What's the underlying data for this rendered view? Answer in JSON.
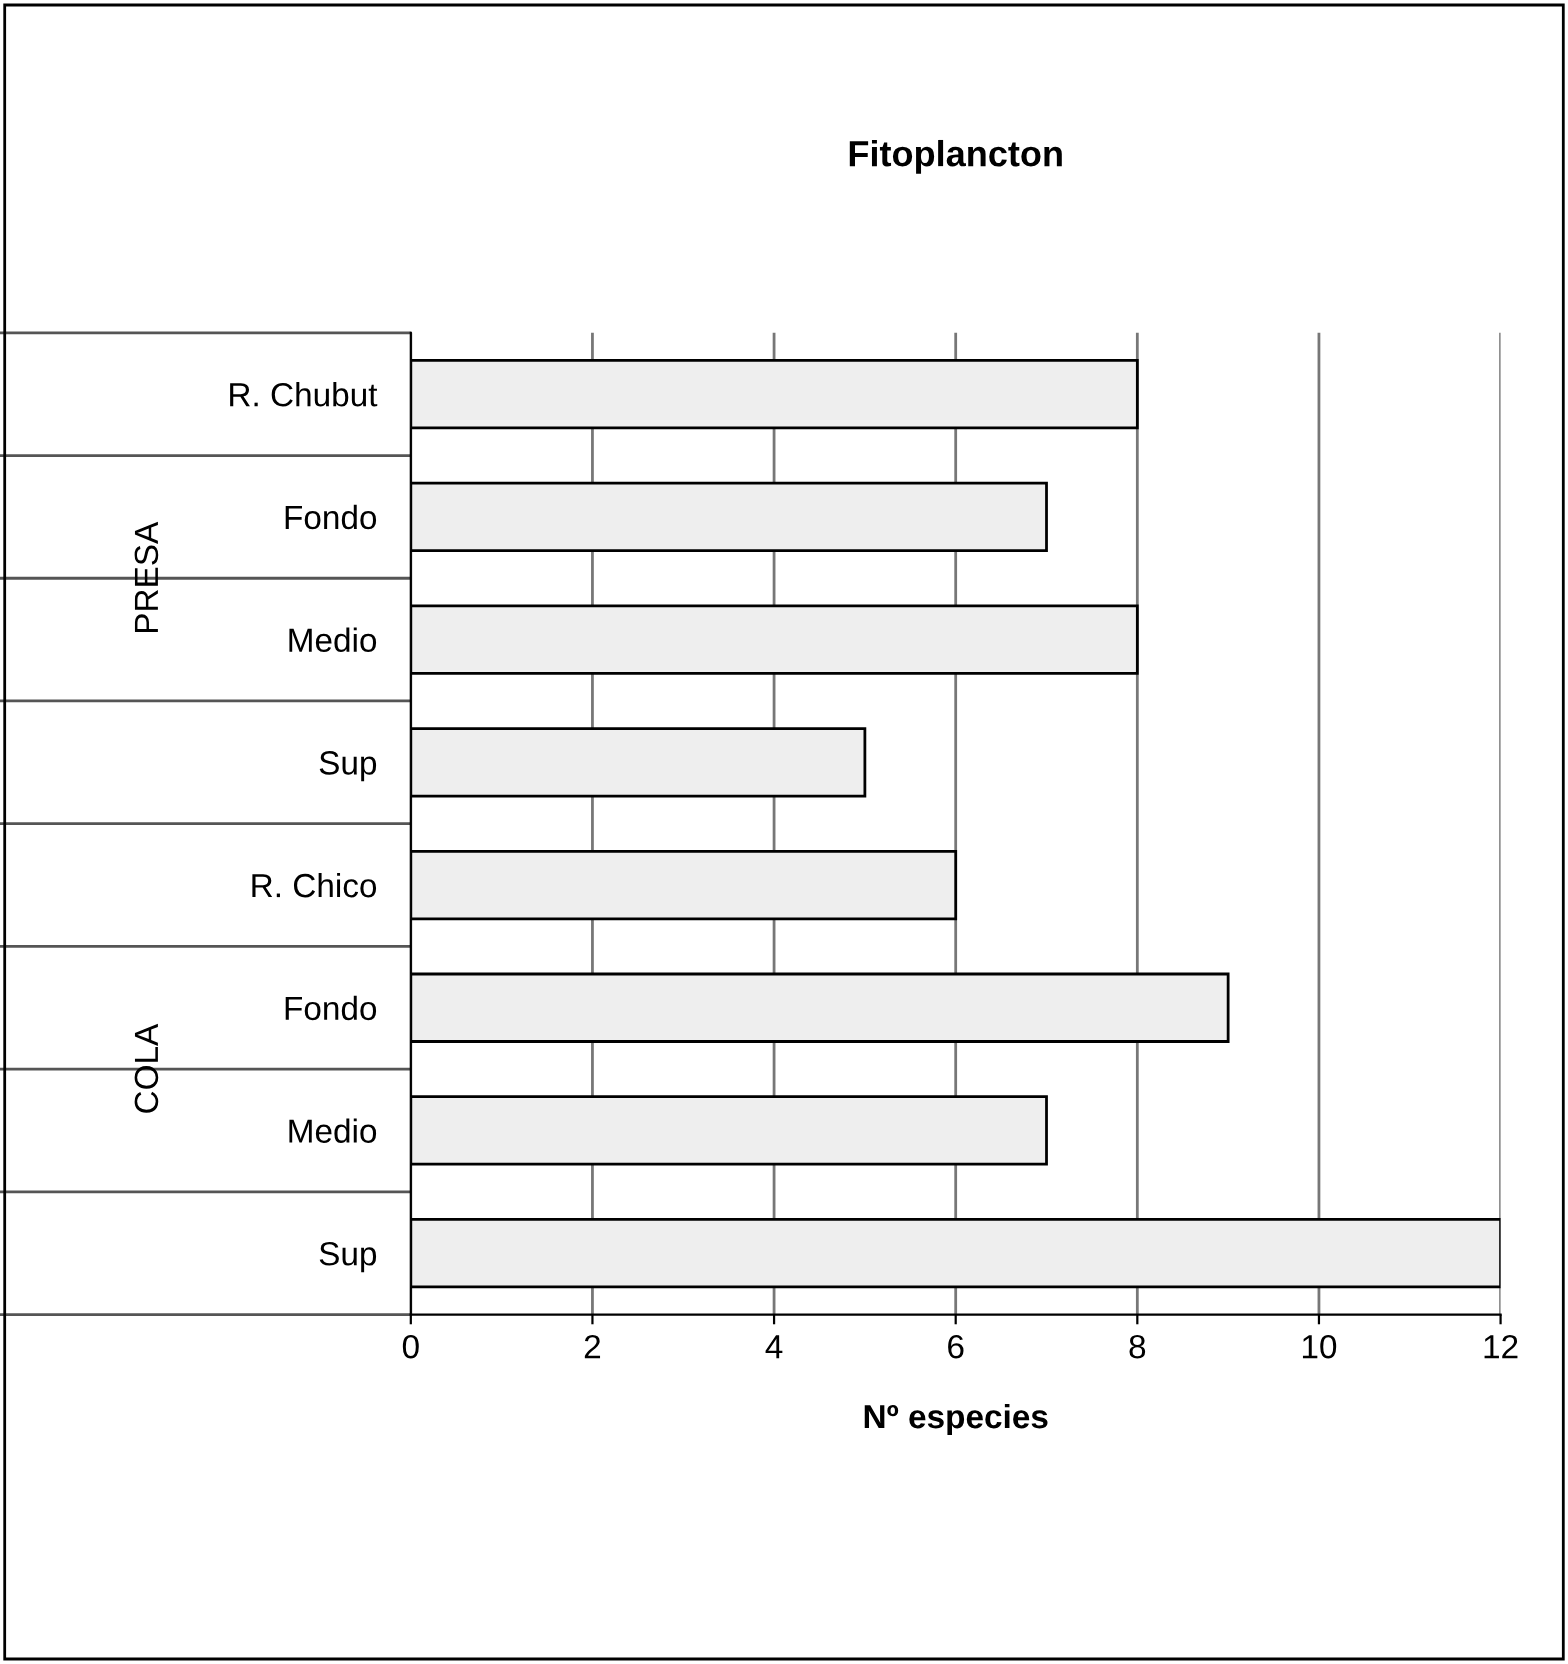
{
  "chart_data": {
    "type": "bar",
    "orientation": "horizontal",
    "title": "Fitoplancton",
    "xlabel": "Nº especies",
    "categories": [
      "R. Chubut",
      "Fondo",
      "Medio",
      "Sup",
      "R. Chico",
      "Fondo",
      "Medio",
      "Sup"
    ],
    "values": [
      8,
      7,
      8,
      5,
      6,
      9,
      7,
      12
    ],
    "color": "#eeeeee",
    "xlim": [
      0,
      12
    ],
    "xticks": [
      0,
      2,
      4,
      6,
      8,
      10,
      12
    ],
    "grid": "x",
    "annotations": [
      "PRESA",
      "COLA"
    ]
  }
}
